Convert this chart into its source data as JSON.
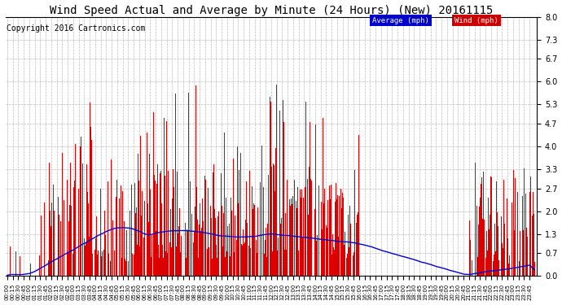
{
  "title": "Wind Speed Actual and Average by Minute (24 Hours) (New) 20161115",
  "copyright": "Copyright 2016 Cartronics.com",
  "ylim": [
    0.0,
    8.0
  ],
  "yticks": [
    0.0,
    0.7,
    1.3,
    2.0,
    2.7,
    3.3,
    4.0,
    4.7,
    5.3,
    6.0,
    6.7,
    7.3,
    8.0
  ],
  "total_minutes": 1440,
  "bar_color": "#dd0000",
  "avg_line_color": "#0000cc",
  "legend_avg_bg": "#0000cc",
  "legend_wind_bg": "#cc0000",
  "background_color": "#ffffff",
  "grid_color": "#bbbbbb",
  "title_fontsize": 10,
  "copyright_fontsize": 7
}
